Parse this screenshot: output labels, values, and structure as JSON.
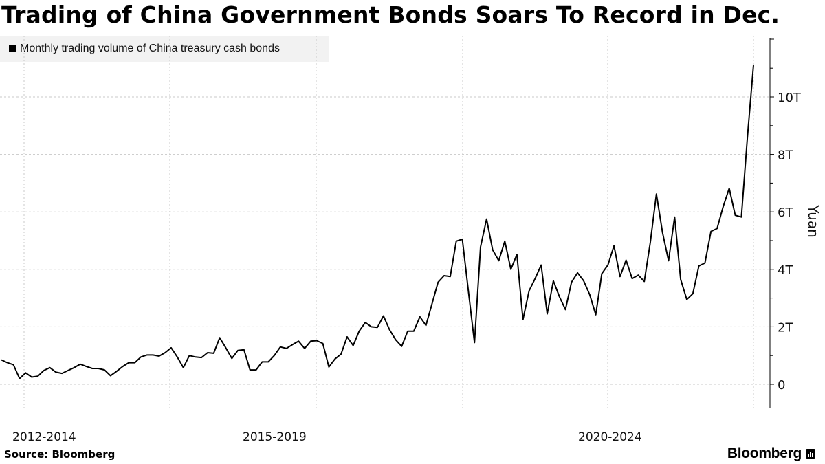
{
  "title": "Trading of China Government Bonds Soars To Record in Dec.",
  "legend": {
    "label": "Monthly trading volume of China treasury cash bonds"
  },
  "source": "Source: Bloomberg",
  "brand": "Bloomberg",
  "chart_data": {
    "type": "line",
    "title": "Trading of China Government Bonds Soars To Record in Dec.",
    "ylabel": "Yuan",
    "xlabel": "",
    "ylim": [
      -0.8,
      12
    ],
    "yticks": [
      0,
      2,
      4,
      6,
      8,
      10
    ],
    "ytick_labels": [
      "0",
      "2T",
      "4T",
      "6T",
      "8T",
      "10T"
    ],
    "x_period_labels": [
      "2012-2014",
      "2015-2019",
      "2020-2024"
    ],
    "grid": true,
    "legend_position": "top-left",
    "series": [
      {
        "name": "Monthly trading volume of China treasury cash bonds",
        "color": "#000000",
        "values": [
          0.85,
          0.75,
          0.68,
          0.2,
          0.4,
          0.25,
          0.28,
          0.48,
          0.58,
          0.42,
          0.38,
          0.48,
          0.58,
          0.7,
          0.62,
          0.55,
          0.55,
          0.5,
          0.3,
          0.45,
          0.62,
          0.75,
          0.75,
          0.95,
          1.02,
          1.02,
          0.98,
          1.1,
          1.27,
          0.95,
          0.58,
          1.0,
          0.95,
          0.93,
          1.1,
          1.08,
          1.62,
          1.27,
          0.9,
          1.18,
          1.2,
          0.5,
          0.5,
          0.78,
          0.78,
          1.0,
          1.3,
          1.25,
          1.38,
          1.5,
          1.25,
          1.5,
          1.52,
          1.42,
          0.6,
          0.88,
          1.05,
          1.65,
          1.35,
          1.85,
          2.15,
          2.0,
          1.98,
          2.38,
          1.9,
          1.55,
          1.32,
          1.85,
          1.85,
          2.35,
          2.05,
          2.8,
          3.55,
          3.78,
          3.75,
          4.98,
          5.05,
          3.25,
          1.45,
          4.78,
          5.75,
          4.68,
          4.3,
          4.98,
          4.0,
          4.52,
          2.25,
          3.25,
          3.68,
          4.15,
          2.45,
          3.6,
          3.05,
          2.6,
          3.55,
          3.88,
          3.6,
          3.12,
          2.42,
          3.85,
          4.15,
          4.82,
          3.75,
          4.32,
          3.68,
          3.8,
          3.58,
          4.95,
          6.62,
          5.28,
          4.3,
          5.82,
          3.65,
          2.95,
          3.15,
          4.12,
          4.22,
          5.32,
          5.42,
          6.18,
          6.82,
          5.88,
          5.82,
          8.6,
          11.1
        ]
      }
    ]
  }
}
